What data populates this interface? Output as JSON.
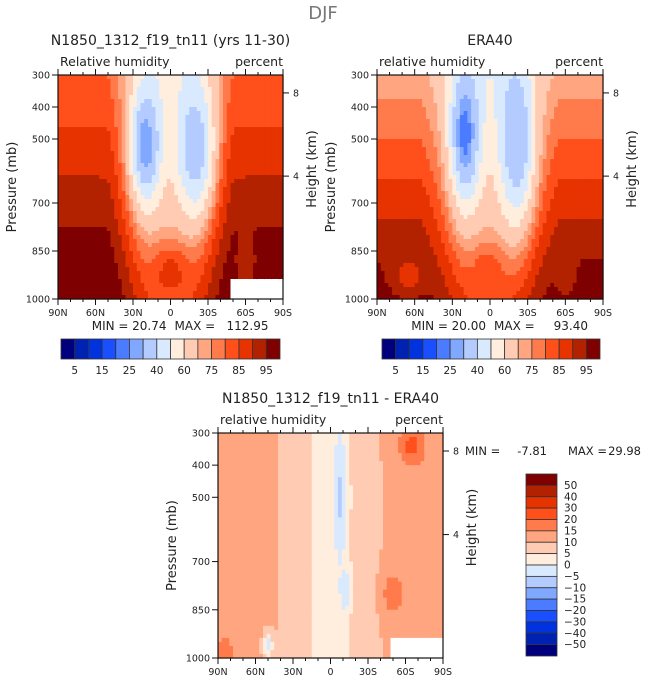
{
  "page_title": "DJF",
  "chart_data": [
    {
      "id": "model",
      "type": "heatmap",
      "title": "N1850_1312_f19_tn11 (yrs 11-30)",
      "left_label": "Relative humidity",
      "right_label": "percent",
      "xlabel": "",
      "ylabel": "Pressure (mb)",
      "y2label": "Height (km)",
      "xticks": [
        "90N",
        "60N",
        "30N",
        "0",
        "30S",
        "60S",
        "90S"
      ],
      "x_range": [
        90,
        -90
      ],
      "yticks": [
        300,
        400,
        500,
        700,
        850,
        1000
      ],
      "y_range": [
        300,
        1000
      ],
      "y2ticks": [
        {
          "label": "8",
          "pressure": 356
        },
        {
          "label": "4",
          "pressure": 616
        }
      ],
      "stats": {
        "min_label": "MIN =",
        "min": "20.74",
        "max_label": "MAX =",
        "max": "112.95"
      },
      "levels": [
        5,
        10,
        15,
        20,
        25,
        30,
        40,
        50,
        60,
        70,
        75,
        80,
        85,
        90,
        95
      ],
      "colorbar_labels": [
        "5",
        "15",
        "25",
        "40",
        "60",
        "75",
        "85",
        "95"
      ],
      "field_features": [
        {
          "lat": 20,
          "p": 520,
          "value": 25,
          "sx": 10,
          "sp": 140
        },
        {
          "lat": -20,
          "p": 530,
          "value": 35,
          "sx": 13,
          "sp": 170
        },
        {
          "lat": 0,
          "p": 920,
          "value": 88,
          "sx": 14,
          "sp": 90
        },
        {
          "lat": 78,
          "p": 960,
          "value": 110,
          "sx": 14,
          "sp": 70
        },
        {
          "lat": -60,
          "p": 890,
          "value": 90,
          "sx": 8,
          "sp": 70
        }
      ],
      "missing_region": {
        "lat_from": -48,
        "lat_to": -90,
        "p_from": 940,
        "p_to": 1000
      }
    },
    {
      "id": "obs",
      "type": "heatmap",
      "title": "ERA40",
      "left_label": "relative humidity",
      "right_label": "percent",
      "xlabel": "",
      "ylabel": "Pressure (mb)",
      "y2label": "Height (km)",
      "xticks": [
        "90N",
        "60N",
        "30N",
        "0",
        "30S",
        "60S",
        "90S"
      ],
      "x_range": [
        90,
        -90
      ],
      "yticks": [
        300,
        400,
        500,
        700,
        850,
        1000
      ],
      "y_range": [
        300,
        1000
      ],
      "y2ticks": [
        {
          "label": "8",
          "pressure": 356
        },
        {
          "label": "4",
          "pressure": 616
        }
      ],
      "stats": {
        "min_label": "MIN =",
        "min": "20.00",
        "max_label": "MAX =",
        "max": "93.40"
      },
      "levels": [
        5,
        10,
        15,
        20,
        25,
        30,
        40,
        50,
        60,
        70,
        75,
        80,
        85,
        90,
        95
      ],
      "colorbar_labels": [
        "5",
        "15",
        "25",
        "40",
        "60",
        "75",
        "85",
        "95"
      ],
      "field_features": [
        {
          "lat": 20,
          "p": 480,
          "value": 22,
          "sx": 10,
          "sp": 170
        },
        {
          "lat": -22,
          "p": 500,
          "value": 32,
          "sx": 12,
          "sp": 220
        },
        {
          "lat": 2,
          "p": 920,
          "value": 85,
          "sx": 12,
          "sp": 80
        },
        {
          "lat": 65,
          "p": 930,
          "value": 88,
          "sx": 16,
          "sp": 80
        },
        {
          "lat": -60,
          "p": 930,
          "value": 90,
          "sx": 8,
          "sp": 70
        }
      ],
      "missing_region": null
    },
    {
      "id": "diff",
      "type": "heatmap",
      "title": "N1850_1312_f19_tn11 - ERA40",
      "left_label": "relative humidity",
      "right_label": "percent",
      "xlabel": "",
      "ylabel": "Pressure (mb)",
      "y2label": "Height (km)",
      "xticks": [
        "90N",
        "60N",
        "30N",
        "0",
        "30S",
        "60S",
        "90S"
      ],
      "x_range": [
        90,
        -90
      ],
      "yticks": [
        300,
        400,
        500,
        700,
        850,
        1000
      ],
      "y_range": [
        300,
        1000
      ],
      "y2ticks": [
        {
          "label": "8",
          "pressure": 356
        },
        {
          "label": "4",
          "pressure": 616
        }
      ],
      "stats": {
        "min_label": "MIN =",
        "min": "-7.81",
        "max_label": "MAX =",
        "max": "29.98"
      },
      "levels": [
        -50,
        -40,
        -30,
        -20,
        -15,
        -10,
        -5,
        0,
        5,
        10,
        15,
        20,
        30,
        40,
        50
      ],
      "colorbar_labels": [
        "50",
        "40",
        "30",
        "20",
        "15",
        "10",
        "5",
        "0",
        "−5",
        "−10",
        "−15",
        "−20",
        "−30",
        "−40",
        "−50"
      ],
      "field_features": [
        {
          "lat": -8,
          "p": 500,
          "value": -6,
          "sx": 5,
          "sp": 200
        },
        {
          "lat": -12,
          "p": 790,
          "value": -6,
          "sx": 4,
          "sp": 60
        },
        {
          "lat": -65,
          "p": 340,
          "value": 22,
          "sx": 10,
          "sp": 60
        },
        {
          "lat": -50,
          "p": 800,
          "value": 20,
          "sx": 8,
          "sp": 60
        },
        {
          "lat": 85,
          "p": 980,
          "value": 18,
          "sx": 8,
          "sp": 50
        },
        {
          "lat": 50,
          "p": 960,
          "value": -3,
          "sx": 4,
          "sp": 40
        }
      ],
      "missing_region": {
        "lat_from": -48,
        "lat_to": -90,
        "p_from": 940,
        "p_to": 1000
      }
    }
  ],
  "colors": {
    "palette": [
      "#00007f",
      "#0022b3",
      "#0033dd",
      "#1a4fff",
      "#4b7cff",
      "#80a8ff",
      "#b3cbff",
      "#d9eaff",
      "#ffeedd",
      "#ffcbb3",
      "#ffa680",
      "#ff7b4b",
      "#ff4f1a",
      "#e63300",
      "#b32200",
      "#7f0000"
    ],
    "frame": "#111111",
    "text": "#222222",
    "missing": "#ffffff"
  }
}
